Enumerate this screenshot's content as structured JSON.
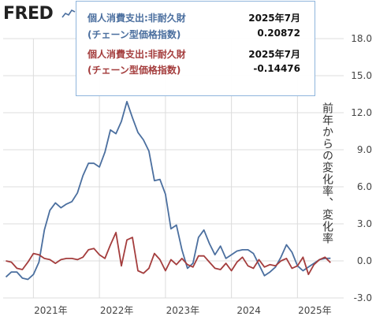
{
  "header": {
    "logo_text": "FRED",
    "logo_icon": "chart-line-icon"
  },
  "tooltip": {
    "series1": {
      "name_line1": "個人消費支出:非耐久財",
      "name_line2": "(チェーン型価格指数)",
      "date": "2025年7月",
      "value": "0.20872",
      "color": "#4b6f9f"
    },
    "series2": {
      "name_line1": "個人消費支出:非耐久財",
      "name_line2": "(チェーン型価格指数)",
      "date": "2025年7月",
      "value": "-0.14476",
      "color": "#a43d3d"
    }
  },
  "chart_data": {
    "type": "line",
    "ylabel": "前年からの変化率、変化率",
    "ylim": [
      -3.0,
      18.0
    ],
    "yticks": [
      "18.0",
      "15.0",
      "12.0",
      "9.0",
      "6.0",
      "3.0",
      "0.0",
      "-3.0"
    ],
    "xticks": [
      "2021年",
      "2022年",
      "2023年",
      "2024",
      "2025年"
    ],
    "grid": true,
    "series": [
      {
        "color": "#4b6f9f",
        "points": [
          [
            "2020-08",
            -1.3
          ],
          [
            "2020-09",
            -0.9
          ],
          [
            "2020-10",
            -0.9
          ],
          [
            "2020-11",
            -1.4
          ],
          [
            "2020-12",
            -1.5
          ],
          [
            "2021-01",
            -1.1
          ],
          [
            "2021-02",
            -0.1
          ],
          [
            "2021-03",
            2.5
          ],
          [
            "2021-04",
            4.1
          ],
          [
            "2021-05",
            4.7
          ],
          [
            "2021-06",
            4.3
          ],
          [
            "2021-07",
            4.6
          ],
          [
            "2021-08",
            4.8
          ],
          [
            "2021-09",
            5.5
          ],
          [
            "2021-10",
            6.9
          ],
          [
            "2021-11",
            7.9
          ],
          [
            "2021-12",
            7.9
          ],
          [
            "2022-01",
            7.6
          ],
          [
            "2022-02",
            8.8
          ],
          [
            "2022-03",
            10.6
          ],
          [
            "2022-04",
            10.3
          ],
          [
            "2022-05",
            11.3
          ],
          [
            "2022-06",
            12.9
          ],
          [
            "2022-07",
            11.6
          ],
          [
            "2022-08",
            10.4
          ],
          [
            "2022-09",
            9.8
          ],
          [
            "2022-10",
            8.9
          ],
          [
            "2022-11",
            6.5
          ],
          [
            "2022-12",
            6.6
          ],
          [
            "2023-01",
            5.4
          ],
          [
            "2023-02",
            2.6
          ],
          [
            "2023-03",
            2.9
          ],
          [
            "2023-04",
            0.9
          ],
          [
            "2023-05",
            -0.6
          ],
          [
            "2023-06",
            -0.2
          ],
          [
            "2023-07",
            1.9
          ],
          [
            "2023-08",
            2.5
          ],
          [
            "2023-09",
            1.4
          ],
          [
            "2023-10",
            0.5
          ],
          [
            "2023-11",
            1.2
          ],
          [
            "2023-12",
            0.2
          ],
          [
            "2024-01",
            0.5
          ],
          [
            "2024-02",
            0.8
          ],
          [
            "2024-03",
            0.9
          ],
          [
            "2024-04",
            0.9
          ],
          [
            "2024-05",
            0.6
          ],
          [
            "2024-06",
            -0.3
          ],
          [
            "2024-07",
            -1.2
          ],
          [
            "2024-08",
            -0.9
          ],
          [
            "2024-09",
            -0.5
          ],
          [
            "2024-10",
            0.3
          ],
          [
            "2024-11",
            1.3
          ],
          [
            "2024-12",
            0.7
          ],
          [
            "2025-01",
            -0.4
          ],
          [
            "2025-02",
            -0.8
          ],
          [
            "2025-03",
            -0.5
          ],
          [
            "2025-04",
            -0.2
          ],
          [
            "2025-05",
            0.1
          ],
          [
            "2025-06",
            0.2
          ],
          [
            "2025-07",
            0.21
          ]
        ]
      },
      {
        "color": "#a43d3d",
        "points": [
          [
            "2020-08",
            0.0
          ],
          [
            "2020-09",
            -0.1
          ],
          [
            "2020-10",
            -0.6
          ],
          [
            "2020-11",
            -0.7
          ],
          [
            "2020-12",
            -0.1
          ],
          [
            "2021-01",
            0.6
          ],
          [
            "2021-02",
            0.5
          ],
          [
            "2021-03",
            0.2
          ],
          [
            "2021-04",
            0.1
          ],
          [
            "2021-05",
            -0.2
          ],
          [
            "2021-06",
            0.1
          ],
          [
            "2021-07",
            0.2
          ],
          [
            "2021-08",
            0.2
          ],
          [
            "2021-09",
            0.1
          ],
          [
            "2021-10",
            0.3
          ],
          [
            "2021-11",
            0.9
          ],
          [
            "2021-12",
            1.0
          ],
          [
            "2022-01",
            0.5
          ],
          [
            "2022-02",
            0.2
          ],
          [
            "2022-03",
            1.3
          ],
          [
            "2022-04",
            2.3
          ],
          [
            "2022-05",
            -0.4
          ],
          [
            "2022-06",
            1.7
          ],
          [
            "2022-07",
            1.9
          ],
          [
            "2022-08",
            -0.8
          ],
          [
            "2022-09",
            -1.0
          ],
          [
            "2022-10",
            -0.6
          ],
          [
            "2022-11",
            0.6
          ],
          [
            "2022-12",
            0.1
          ],
          [
            "2023-01",
            -0.8
          ],
          [
            "2023-02",
            0.1
          ],
          [
            "2023-03",
            -0.3
          ],
          [
            "2023-04",
            0.2
          ],
          [
            "2023-05",
            -0.3
          ],
          [
            "2023-06",
            -0.5
          ],
          [
            "2023-07",
            0.4
          ],
          [
            "2023-08",
            0.4
          ],
          [
            "2023-09",
            -0.1
          ],
          [
            "2023-10",
            -0.6
          ],
          [
            "2023-11",
            -0.7
          ],
          [
            "2023-12",
            -0.2
          ],
          [
            "2024-01",
            -0.8
          ],
          [
            "2024-02",
            -0.1
          ],
          [
            "2024-03",
            0.3
          ],
          [
            "2024-04",
            -0.4
          ],
          [
            "2024-05",
            -0.6
          ],
          [
            "2024-06",
            0.1
          ],
          [
            "2024-07",
            -0.5
          ],
          [
            "2024-08",
            -0.3
          ],
          [
            "2024-09",
            -0.4
          ],
          [
            "2024-10",
            0.0
          ],
          [
            "2024-11",
            0.2
          ],
          [
            "2024-12",
            -0.6
          ],
          [
            "2025-01",
            -0.4
          ],
          [
            "2025-02",
            0.3
          ],
          [
            "2025-03",
            -1.1
          ],
          [
            "2025-04",
            -0.3
          ],
          [
            "2025-05",
            0.1
          ],
          [
            "2025-06",
            0.3
          ],
          [
            "2025-07",
            -0.14
          ]
        ]
      }
    ]
  }
}
